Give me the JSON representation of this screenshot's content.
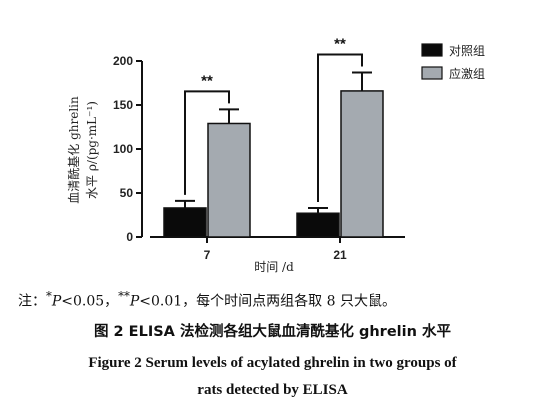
{
  "chart_data": {
    "type": "bar",
    "categories": [
      "7",
      "21"
    ],
    "series": [
      {
        "name": "对照组",
        "values": [
          33,
          27
        ],
        "errors": [
          8,
          6
        ],
        "color": "#0a0a0a"
      },
      {
        "name": "应激组",
        "values": [
          129,
          166
        ],
        "errors": [
          16,
          21
        ],
        "color": "#a4aab0"
      }
    ],
    "xlabel": "时间 /d",
    "ylabel_line1": "血清酰基化 ghrelin",
    "ylabel_line2": "水平 ρ/(pg·mL⁻¹)",
    "ylim": [
      0,
      200
    ],
    "yticks": [
      0,
      50,
      100,
      150,
      200
    ],
    "significance": [
      {
        "category": "7",
        "label": "**"
      },
      {
        "category": "21",
        "label": "**"
      }
    ],
    "legend_position": "top-right",
    "grid": false
  },
  "note": {
    "prefix": "注：",
    "sig1_mark": "*",
    "sig1_var": "P",
    "sig1_text": "<0.05，",
    "sig2_mark": "**",
    "sig2_var": "P",
    "sig2_text": "<0.01，每个时间点两组各取 8 只大鼠。"
  },
  "caption_cn": "图 2  ELISA 法检测各组大鼠血清酰基化 ghrelin 水平",
  "caption_en_line1": "Figure 2  Serum levels of acylated ghrelin in two groups of",
  "caption_en_line2": "rats detected by ELISA"
}
